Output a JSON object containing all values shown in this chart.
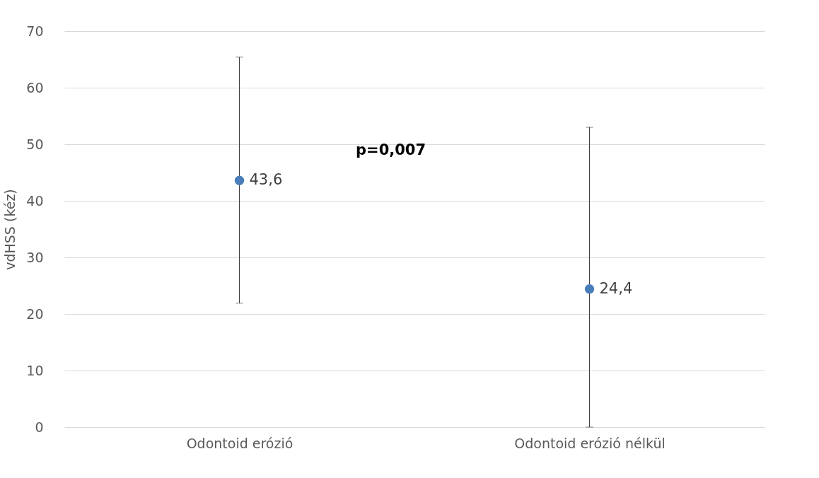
{
  "chart_data": {
    "type": "scatter",
    "ylabel": "vdHSS (kéz)",
    "categories": [
      "Odontoid erózió",
      "Odontoid erózió nélkül"
    ],
    "series": [
      {
        "color": "#4a7ebb",
        "values": [
          43.6,
          24.4
        ],
        "errors": [
          [
            21.9,
            65.4
          ],
          [
            0,
            53.0
          ]
        ],
        "value_labels": [
          "43,6",
          "24,4"
        ]
      }
    ],
    "ylim": [
      0,
      70
    ],
    "yticks": [
      0,
      10,
      20,
      30,
      40,
      50,
      60,
      70
    ],
    "grid": "y",
    "marker": "circle",
    "annotations": [
      "p=0,007"
    ]
  }
}
